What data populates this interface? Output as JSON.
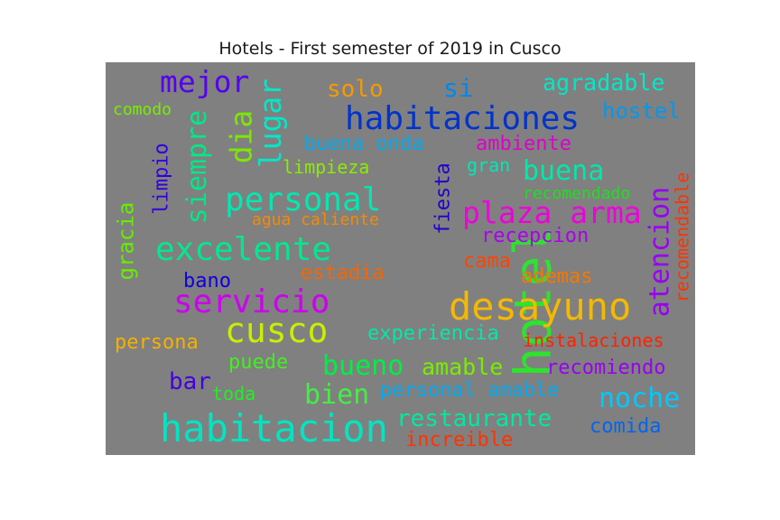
{
  "title": "Hotels - First semester of 2019 in Cusco",
  "chart_data": {
    "type": "wordcloud",
    "title": "Hotels - First semester of 2019 in Cusco",
    "background": "#808080",
    "words": [
      {
        "text": "hotel",
        "color": "#2ee32e",
        "orientation": "vertical"
      },
      {
        "text": "desayuno",
        "color": "#f5b800",
        "orientation": "horizontal"
      },
      {
        "text": "habitacion",
        "color": "#00e5c0",
        "orientation": "horizontal"
      },
      {
        "text": "habitaciones",
        "color": "#0033cc",
        "orientation": "horizontal"
      },
      {
        "text": "cusco",
        "color": "#c5f000",
        "orientation": "horizontal"
      },
      {
        "text": "excelente",
        "color": "#00e890",
        "orientation": "horizontal"
      },
      {
        "text": "servicio",
        "color": "#cc00ee",
        "orientation": "horizontal"
      },
      {
        "text": "personal",
        "color": "#00e8b0",
        "orientation": "horizontal"
      },
      {
        "text": "plaza arma",
        "color": "#ee00dd",
        "orientation": "horizontal"
      },
      {
        "text": "atencion",
        "color": "#9900ee",
        "orientation": "vertical"
      },
      {
        "text": "noche",
        "color": "#00c8ff",
        "orientation": "horizontal"
      },
      {
        "text": "mejor",
        "color": "#5500ee",
        "orientation": "horizontal"
      },
      {
        "text": "lugar",
        "color": "#00e8c8",
        "orientation": "vertical"
      },
      {
        "text": "dia",
        "color": "#7ce800",
        "orientation": "vertical"
      },
      {
        "text": "siempre",
        "color": "#00e888",
        "orientation": "vertical"
      },
      {
        "text": "buena",
        "color": "#00e8a8",
        "orientation": "horizontal"
      },
      {
        "text": "bueno",
        "color": "#00ee44",
        "orientation": "horizontal"
      },
      {
        "text": "bien",
        "color": "#44ee44",
        "orientation": "horizontal"
      },
      {
        "text": "restaurante",
        "color": "#00e8a0",
        "orientation": "horizontal"
      },
      {
        "text": "agradable",
        "color": "#00e8c8",
        "orientation": "horizontal"
      },
      {
        "text": "hostel",
        "color": "#0099ee",
        "orientation": "horizontal"
      },
      {
        "text": "si",
        "color": "#0088ee",
        "orientation": "horizontal"
      },
      {
        "text": "solo",
        "color": "#f59a00",
        "orientation": "horizontal"
      },
      {
        "text": "recomendable",
        "color": "#ff3300",
        "orientation": "vertical"
      },
      {
        "text": "gracia",
        "color": "#66ee00",
        "orientation": "vertical"
      },
      {
        "text": "limpio",
        "color": "#3300dd",
        "orientation": "vertical"
      },
      {
        "text": "fiesta",
        "color": "#2200cc",
        "orientation": "vertical"
      },
      {
        "text": "buena onda",
        "color": "#00aaee",
        "orientation": "horizontal"
      },
      {
        "text": "ambiente",
        "color": "#dd00cc",
        "orientation": "horizontal"
      },
      {
        "text": "limpieza",
        "color": "#88ee00",
        "orientation": "horizontal"
      },
      {
        "text": "gran",
        "color": "#00e8b8",
        "orientation": "horizontal"
      },
      {
        "text": "recomendado",
        "color": "#22dd22",
        "orientation": "horizontal"
      },
      {
        "text": "agua caliente",
        "color": "#f58a00",
        "orientation": "horizontal"
      },
      {
        "text": "recepcion",
        "color": "#aa00ee",
        "orientation": "horizontal"
      },
      {
        "text": "bano",
        "color": "#1100dd",
        "orientation": "horizontal"
      },
      {
        "text": "estadia",
        "color": "#f56600",
        "orientation": "horizontal"
      },
      {
        "text": "cama",
        "color": "#ff4400",
        "orientation": "horizontal"
      },
      {
        "text": "ademas",
        "color": "#f57700",
        "orientation": "horizontal"
      },
      {
        "text": "experiencia",
        "color": "#00e8a8",
        "orientation": "horizontal"
      },
      {
        "text": "instalaciones",
        "color": "#ff2200",
        "orientation": "horizontal"
      },
      {
        "text": "persona",
        "color": "#f5b000",
        "orientation": "horizontal"
      },
      {
        "text": "puede",
        "color": "#44ee22",
        "orientation": "horizontal"
      },
      {
        "text": "amable",
        "color": "#77ee00",
        "orientation": "horizontal"
      },
      {
        "text": "recomiendo",
        "color": "#9900ee",
        "orientation": "horizontal"
      },
      {
        "text": "bar",
        "color": "#4400dd",
        "orientation": "horizontal"
      },
      {
        "text": "toda",
        "color": "#22ee22",
        "orientation": "horizontal"
      },
      {
        "text": "personal amable",
        "color": "#00aaee",
        "orientation": "horizontal"
      },
      {
        "text": "comida",
        "color": "#0066ee",
        "orientation": "horizontal"
      },
      {
        "text": "increible",
        "color": "#ff3300",
        "orientation": "horizontal"
      },
      {
        "text": "comodo",
        "color": "#77ee00",
        "orientation": "horizontal"
      }
    ]
  }
}
